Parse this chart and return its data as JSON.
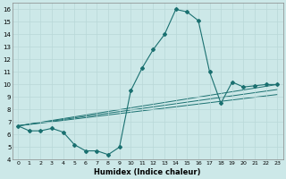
{
  "xlabel": "Humidex (Indice chaleur)",
  "bg_color": "#cce8e8",
  "grid_color": "#b8d8d8",
  "line_color": "#1a7070",
  "xlim": [
    -0.5,
    23.5
  ],
  "ylim": [
    4,
    16.5
  ],
  "xticks": [
    0,
    1,
    2,
    3,
    4,
    5,
    6,
    7,
    8,
    9,
    10,
    11,
    12,
    13,
    14,
    15,
    16,
    17,
    18,
    19,
    20,
    21,
    22,
    23
  ],
  "yticks": [
    4,
    5,
    6,
    7,
    8,
    9,
    10,
    11,
    12,
    13,
    14,
    15,
    16
  ],
  "main_line": {
    "x": [
      0,
      1,
      2,
      3,
      4,
      5,
      6,
      7,
      8,
      9,
      10,
      11,
      12,
      13,
      14,
      15,
      16,
      17,
      18,
      19,
      20,
      21,
      22,
      23
    ],
    "y": [
      6.7,
      6.3,
      6.3,
      6.5,
      6.2,
      5.2,
      4.7,
      4.7,
      4.4,
      5.0,
      9.5,
      11.3,
      12.8,
      14.0,
      16.0,
      15.8,
      15.1,
      11.0,
      8.5,
      10.2,
      9.8,
      9.9,
      10.0,
      10.0
    ]
  },
  "trend_lines": [
    {
      "x": [
        0,
        23
      ],
      "y": [
        6.7,
        10.0
      ]
    },
    {
      "x": [
        0,
        23
      ],
      "y": [
        6.7,
        9.6
      ]
    },
    {
      "x": [
        0,
        23
      ],
      "y": [
        6.7,
        9.2
      ]
    }
  ]
}
